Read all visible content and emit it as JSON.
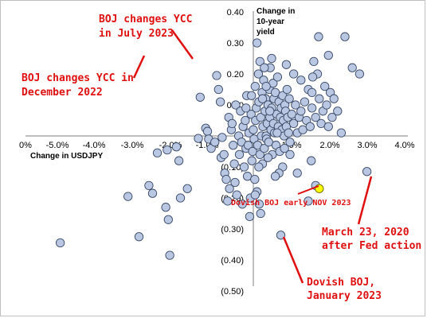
{
  "chart_data": {
    "type": "scatter",
    "title": "",
    "xlabel": "Change in USDJPY",
    "ylabel": "Change in 10-year yield",
    "xlim": [
      -0.06,
      0.04
    ],
    "ylim": [
      -0.5,
      0.4
    ],
    "x_ticks": [
      "0%",
      "-5.0%",
      "-4.0%",
      "-3.0%",
      "-2.0%",
      "-1.0%",
      "0.0%",
      "1.0%",
      "2.0%",
      "3.0%",
      "4.0%"
    ],
    "y_ticks": [
      "0.40",
      "0.30",
      "0.20",
      "0.10",
      "(0.10)",
      "(0.20)",
      "(0.30)",
      "(0.40)",
      "(0.50)"
    ],
    "grid": false,
    "legend": "none",
    "point_color": "#b9c7e3",
    "highlight_color": "#ffff00",
    "annotation_color": "#e01010",
    "points": [
      [
        -0.0527,
        -0.345
      ],
      [
        -0.0342,
        -0.195
      ],
      [
        -0.0312,
        -0.325
      ],
      [
        -0.0275,
        -0.185
      ],
      [
        -0.0262,
        -0.055
      ],
      [
        -0.0239,
        -0.23
      ],
      [
        -0.0232,
        -0.27
      ],
      [
        -0.0228,
        -0.385
      ],
      [
        -0.021,
        -0.035
      ],
      [
        -0.0203,
        -0.08
      ],
      [
        -0.0199,
        -0.2
      ],
      [
        -0.018,
        -0.17
      ],
      [
        -0.0285,
        -0.16
      ],
      [
        -0.0235,
        -0.045
      ],
      [
        -0.0145,
        0.125
      ],
      [
        -0.015,
        -0.008
      ],
      [
        -0.013,
        0.025
      ],
      [
        -0.0125,
        0.015
      ],
      [
        -0.0122,
        -0.01
      ],
      [
        -0.0115,
        -0.04
      ],
      [
        -0.0105,
        -0.02
      ],
      [
        -0.01,
        0.195
      ],
      [
        -0.0095,
        0.15
      ],
      [
        -0.009,
        0.11
      ],
      [
        -0.0088,
        -0.07
      ],
      [
        -0.0085,
        -0.005
      ],
      [
        -0.008,
        -0.06
      ],
      [
        -0.0078,
        -0.12
      ],
      [
        -0.0074,
        -0.14
      ],
      [
        -0.007,
        -0.21
      ],
      [
        -0.0067,
        0.06
      ],
      [
        -0.0065,
        -0.17
      ],
      [
        -0.006,
        0.02
      ],
      [
        -0.0058,
        0.04
      ],
      [
        -0.0055,
        -0.03
      ],
      [
        -0.0052,
        -0.09
      ],
      [
        -0.005,
        -0.15
      ],
      [
        -0.0048,
        0.1
      ],
      [
        -0.0045,
        -0.19
      ],
      [
        -0.004,
        0.0
      ],
      [
        -0.0038,
        -0.06
      ],
      [
        -0.0035,
        0.08
      ],
      [
        -0.0032,
        -0.02
      ],
      [
        -0.003,
        -0.22
      ],
      [
        -0.0028,
        0.03
      ],
      [
        -0.0025,
        -0.1
      ],
      [
        -0.0022,
        0.05
      ],
      [
        -0.002,
        -0.04
      ],
      [
        -0.0018,
        0.13
      ],
      [
        -0.0016,
        -0.13
      ],
      [
        -0.0014,
        -0.03
      ],
      [
        -0.0012,
        0.01
      ],
      [
        -0.001,
        -0.26
      ],
      [
        -0.0008,
        -0.2
      ],
      [
        -0.0006,
        0.07
      ],
      [
        -0.0004,
        -0.08
      ],
      [
        -0.0002,
        -0.05
      ],
      [
        0.0,
        0.02
      ],
      [
        0.0002,
        -0.01
      ],
      [
        0.0004,
        -0.14
      ],
      [
        0.0005,
        0.16
      ],
      [
        0.0006,
        0.05
      ],
      [
        0.0008,
        0.09
      ],
      [
        0.001,
        -0.18
      ],
      [
        0.001,
        0.3
      ],
      [
        0.0012,
        -0.03
      ],
      [
        0.0014,
        0.2
      ],
      [
        0.0015,
        0.11
      ],
      [
        0.0016,
        -0.22
      ],
      [
        0.0018,
        -0.06
      ],
      [
        0.0018,
        0.24
      ],
      [
        0.002,
        0.06
      ],
      [
        0.0022,
        0.0
      ],
      [
        0.0024,
        0.14
      ],
      [
        0.0025,
        -0.09
      ],
      [
        0.0026,
        0.03
      ],
      [
        0.0028,
        0.18
      ],
      [
        0.003,
        -0.04
      ],
      [
        0.0032,
        0.08
      ],
      [
        0.0034,
        0.12
      ],
      [
        0.0035,
        0.0
      ],
      [
        0.0036,
        -0.01
      ],
      [
        0.0038,
        0.04
      ],
      [
        0.004,
        0.1
      ],
      [
        0.0042,
        -0.02
      ],
      [
        0.0044,
        0.15
      ],
      [
        0.0045,
        0.06
      ],
      [
        0.0046,
        0.22
      ],
      [
        0.0048,
        0.02
      ],
      [
        0.005,
        0.09
      ],
      [
        0.0052,
        -0.06
      ],
      [
        0.0054,
        0.17
      ],
      [
        0.0055,
        0.04
      ],
      [
        0.0056,
        0.12
      ],
      [
        0.0058,
        0.01
      ],
      [
        0.006,
        0.14
      ],
      [
        0.0062,
        -0.03
      ],
      [
        0.0064,
        0.07
      ],
      [
        0.0066,
        0.19
      ],
      [
        0.0068,
        0.03
      ],
      [
        0.007,
        0.11
      ],
      [
        0.0072,
        -0.05
      ],
      [
        0.0074,
        0.06
      ],
      [
        0.0076,
        0.09
      ],
      [
        0.0078,
        0.02
      ],
      [
        0.008,
        0.13
      ],
      [
        0.0082,
        0.05
      ],
      [
        0.0084,
        0.0
      ],
      [
        0.0086,
        0.1
      ],
      [
        0.0088,
        0.08
      ],
      [
        0.009,
        0.03
      ],
      [
        0.0092,
        0.15
      ],
      [
        0.0094,
        0.06
      ],
      [
        0.0096,
        0.01
      ],
      [
        0.0098,
        0.12
      ],
      [
        0.01,
        -0.02
      ],
      [
        0.0105,
        0.07
      ],
      [
        0.011,
        0.04
      ],
      [
        0.0115,
        0.1
      ],
      [
        0.012,
        0.01
      ],
      [
        0.0125,
        0.06
      ],
      [
        0.013,
        0.08
      ],
      [
        0.0135,
        0.02
      ],
      [
        0.014,
        0.11
      ],
      [
        0.0145,
        0.05
      ],
      [
        0.015,
        0.15
      ],
      [
        0.0155,
        0.03
      ],
      [
        0.016,
        0.09
      ],
      [
        0.0165,
        0.24
      ],
      [
        0.017,
        0.06
      ],
      [
        0.0175,
        0.2
      ],
      [
        0.018,
        0.12
      ],
      [
        0.0185,
        0.04
      ],
      [
        0.019,
        0.08
      ],
      [
        0.0195,
        0.16
      ],
      [
        0.02,
        0.1
      ],
      [
        0.0205,
        0.03
      ],
      [
        0.021,
        0.14
      ],
      [
        0.0215,
        0.06
      ],
      [
        0.022,
        0.12
      ],
      [
        0.023,
        0.08
      ],
      [
        0.024,
        0.01
      ],
      [
        0.025,
        0.32
      ],
      [
        0.027,
        0.22
      ],
      [
        0.029,
        0.2
      ],
      [
        0.0205,
        0.26
      ],
      [
        0.0178,
        0.32
      ],
      [
        0.0162,
        0.19
      ],
      [
        0.0158,
        -0.08
      ],
      [
        0.017,
        -0.16
      ],
      [
        0.015,
        -0.21
      ],
      [
        0.012,
        -0.12
      ],
      [
        0.01,
        -0.06
      ],
      [
        0.008,
        -0.1
      ],
      [
        0.007,
        -0.12
      ],
      [
        0.0075,
        -0.32
      ],
      [
        0.002,
        -0.25
      ],
      [
        0.0005,
        -0.19
      ],
      [
        0.031,
        -0.115
      ],
      [
        0.011,
        0.2
      ],
      [
        0.009,
        0.23
      ],
      [
        0.005,
        0.25
      ],
      [
        0.003,
        0.22
      ],
      [
        0.013,
        0.18
      ],
      [
        0.016,
        0.14
      ],
      [
        -0.002,
        0.09
      ],
      [
        -0.0005,
        0.13
      ],
      [
        0.0015,
        -0.1
      ],
      [
        0.004,
        -0.07
      ],
      [
        0.006,
        -0.13
      ],
      [
        0.0025,
        0.12
      ],
      [
        0.0035,
        0.16
      ],
      [
        0.0045,
        0.08
      ],
      [
        0.0065,
        0.01
      ],
      [
        0.0085,
        -0.04
      ]
    ],
    "highlight_point": [
      0.018,
      -0.17
    ],
    "annotations": [
      {
        "lines": [
          "BOJ changes YCC",
          "in July 2023"
        ],
        "target": [
          -0.015,
          0.225
        ]
      },
      {
        "lines": [
          "BOJ changes YCC in",
          "December 2022"
        ],
        "target": [
          -0.0275,
          0.265
        ]
      },
      {
        "lines": [
          "Dovish BOJ early NOV 2023"
        ],
        "target": [
          0.018,
          -0.17
        ]
      },
      {
        "lines": [
          "March 23, 2020",
          "after Fed action"
        ],
        "target": [
          0.031,
          -0.115
        ]
      },
      {
        "lines": [
          "Dovish BOJ,",
          "January 2023"
        ],
        "target": [
          0.0075,
          -0.32
        ]
      }
    ]
  }
}
